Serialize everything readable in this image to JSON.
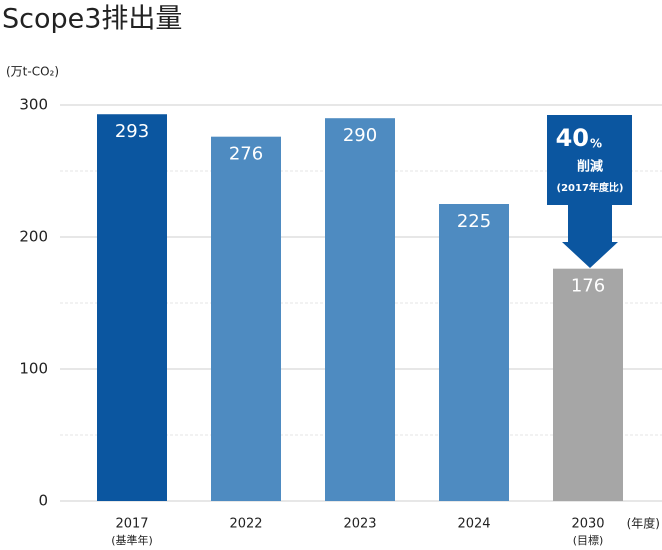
{
  "chart_data": {
    "type": "bar",
    "title": "Scope3排出量",
    "y_unit_label": "(万t-CO₂)",
    "x_unit_label": "(年度)",
    "categories": [
      "2017",
      "2022",
      "2023",
      "2024",
      "2030"
    ],
    "category_notes": [
      "(基準年)",
      null,
      null,
      null,
      "(目標)"
    ],
    "values": [
      293,
      276,
      290,
      225,
      176
    ],
    "colors": [
      "#0b56a0",
      "#4e8bc1",
      "#4e8bc1",
      "#4e8bc1",
      "#a6a6a6"
    ],
    "ylim": [
      0,
      300
    ],
    "yticks": [
      0,
      100,
      200,
      300
    ],
    "minor_gridlines": [
      50,
      150,
      250
    ],
    "grid": true,
    "annotation": {
      "number": "40",
      "unit": "%",
      "text": "削減",
      "note": "(2017年度比)"
    }
  }
}
